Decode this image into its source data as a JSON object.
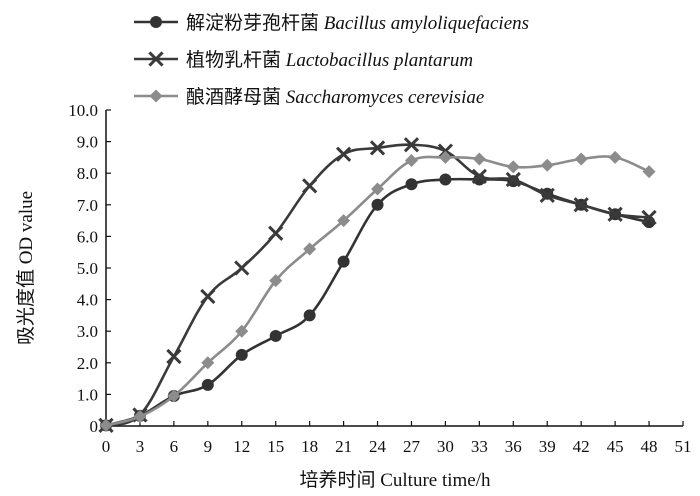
{
  "chart_data": {
    "type": "line",
    "title": "",
    "xlabel": "培养时间  Culture time/h",
    "ylabel": "吸光度值  OD value",
    "x": [
      0,
      3,
      6,
      9,
      12,
      15,
      18,
      21,
      24,
      27,
      30,
      33,
      36,
      39,
      42,
      45,
      48
    ],
    "xticks": [
      "0",
      "3",
      "6",
      "9",
      "12",
      "15",
      "18",
      "21",
      "24",
      "27",
      "30",
      "33",
      "36",
      "39",
      "42",
      "45",
      "48",
      "51"
    ],
    "yticks": [
      "0",
      "1.0",
      "2.0",
      "3.0",
      "4.0",
      "5.0",
      "6.0",
      "7.0",
      "8.0",
      "9.0",
      "10.0"
    ],
    "xlim": [
      0,
      51
    ],
    "ylim": [
      0,
      10
    ],
    "grid": false,
    "legend_position": "top",
    "series": [
      {
        "name_cn": "解淀粉芽孢杆菌",
        "name_latin": "Bacillus amyloliquefaciens",
        "marker": "circle",
        "color": "#333333",
        "values": [
          0.02,
          0.32,
          0.95,
          1.3,
          2.25,
          2.85,
          3.5,
          5.2,
          7.0,
          7.65,
          7.8,
          7.8,
          7.75,
          7.35,
          7.0,
          6.7,
          6.45
        ]
      },
      {
        "name_cn": "植物乳杆菌",
        "name_latin": "Lactobacillus plantarum",
        "marker": "x",
        "color": "#3a3a3a",
        "values": [
          0.02,
          0.35,
          2.2,
          4.1,
          5.0,
          6.1,
          7.6,
          8.6,
          8.8,
          8.9,
          8.7,
          7.9,
          7.8,
          7.3,
          7.0,
          6.7,
          6.6
        ]
      },
      {
        "name_cn": "酿酒酵母菌",
        "name_latin": "Saccharomyces cerevisiae",
        "marker": "diamond",
        "color": "#8c8c8c",
        "values": [
          0.02,
          0.3,
          0.95,
          2.0,
          3.0,
          4.6,
          5.6,
          6.5,
          7.5,
          8.4,
          8.5,
          8.45,
          8.2,
          8.25,
          8.45,
          8.5,
          8.05
        ]
      }
    ]
  }
}
